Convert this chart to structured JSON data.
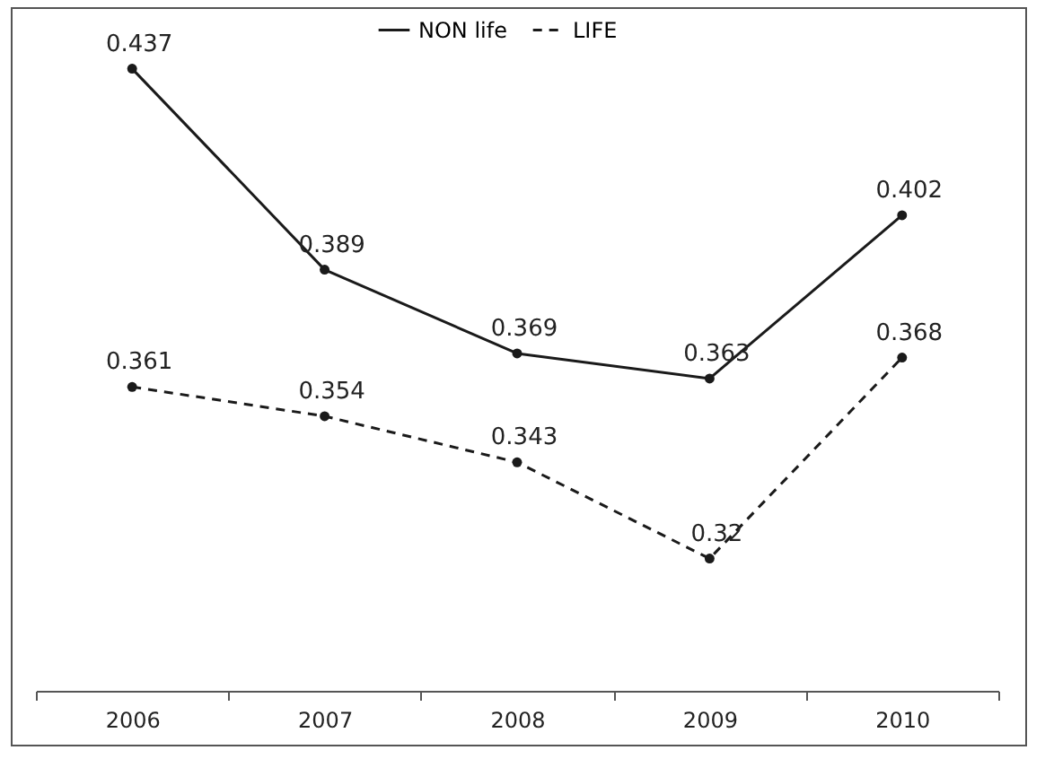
{
  "chart_data": {
    "type": "line",
    "categories": [
      "2006",
      "2007",
      "2008",
      "2009",
      "2010"
    ],
    "series": [
      {
        "name": "NON life",
        "color": "#1a1a1a",
        "line_style": "solid",
        "values": [
          0.437,
          0.389,
          0.369,
          0.363,
          0.402
        ]
      },
      {
        "name": "LIFE",
        "color": "#1a1a1a",
        "line_style": "dashed",
        "values": [
          0.361,
          0.354,
          0.343,
          0.32,
          0.368
        ]
      }
    ],
    "data_labels": true,
    "legend": "top",
    "marker": "circle"
  }
}
